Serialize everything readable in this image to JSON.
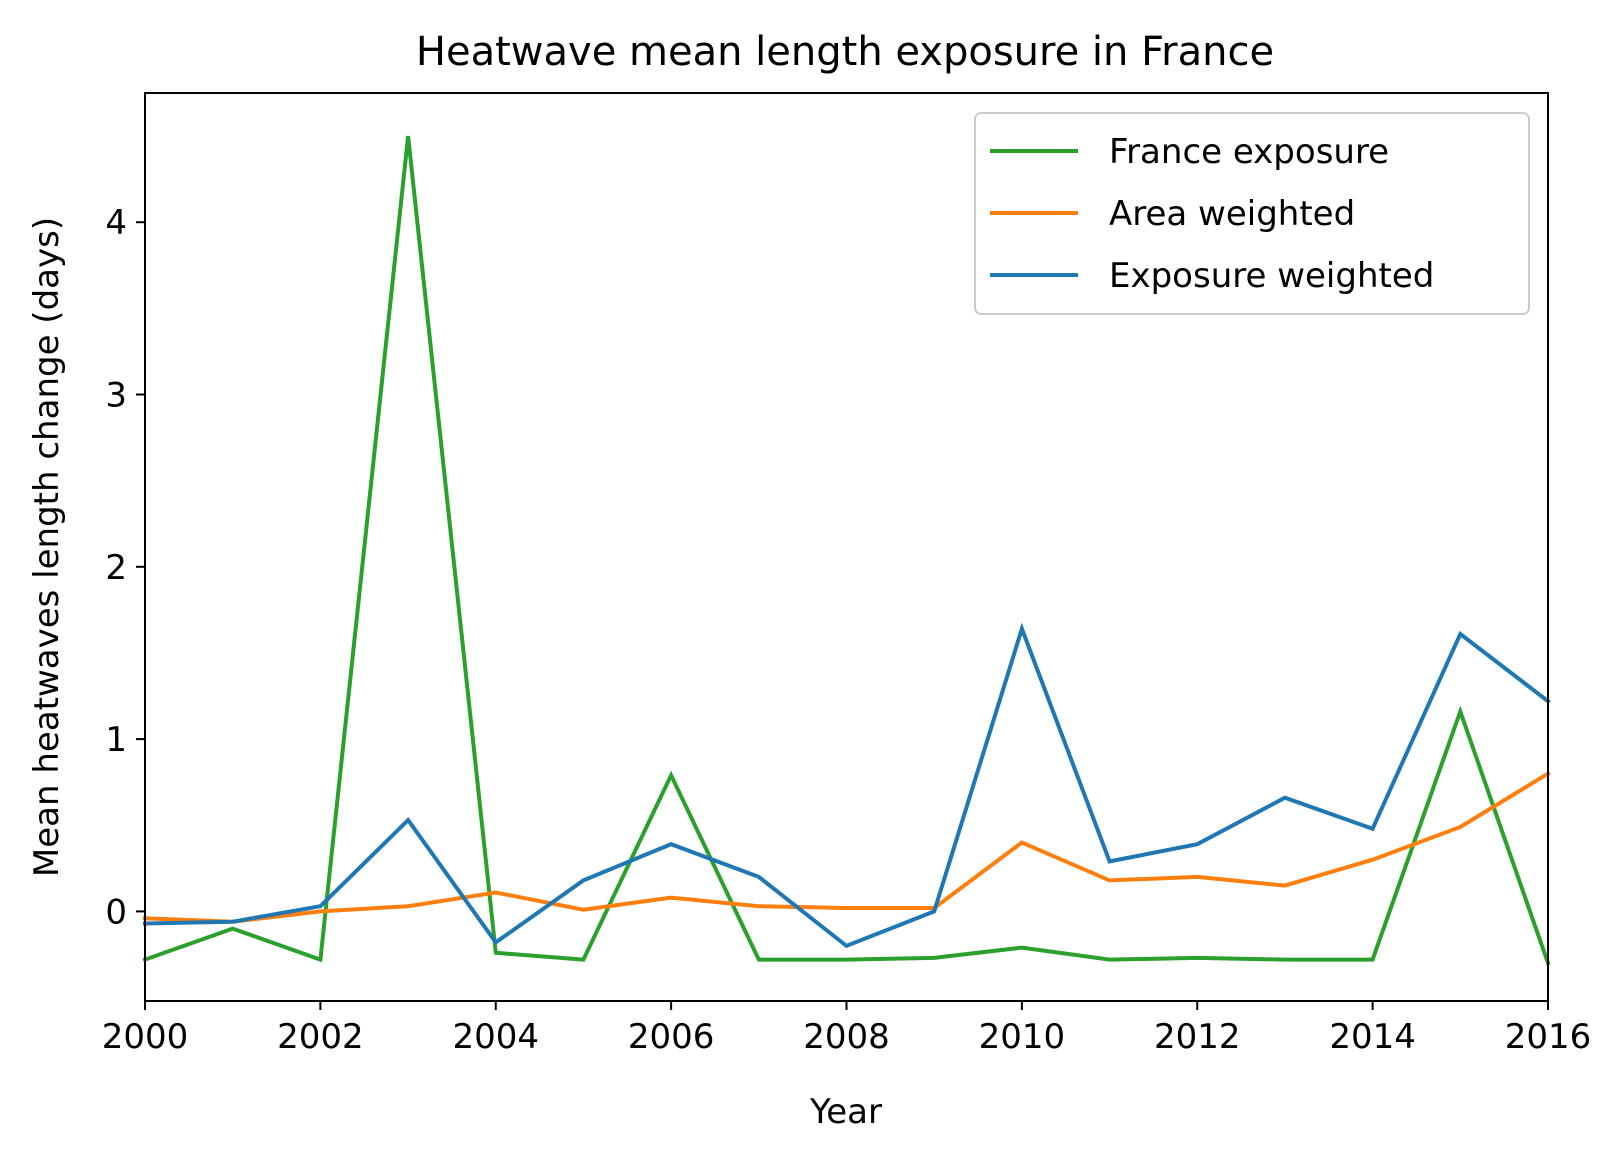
{
  "chart_data": {
    "type": "line",
    "title": "Heatwave mean length exposure in France",
    "xlabel": "Year",
    "ylabel": "Mean heatwaves length change (days)",
    "xlim": [
      2000,
      2016
    ],
    "ylim": [
      -0.52,
      4.75
    ],
    "xticks": [
      "2000",
      "2002",
      "2004",
      "2006",
      "2008",
      "2010",
      "2012",
      "2014",
      "2016"
    ],
    "yticks": [
      "0",
      "1",
      "2",
      "3",
      "4"
    ],
    "x": [
      2000,
      2001,
      2002,
      2003,
      2004,
      2005,
      2006,
      2007,
      2008,
      2009,
      2010,
      2011,
      2012,
      2013,
      2014,
      2015,
      2016
    ],
    "grid": false,
    "legend_position": "top-right",
    "series": [
      {
        "name": "France exposure",
        "color": "#2ca02c",
        "values": [
          -0.28,
          -0.1,
          -0.28,
          4.5,
          -0.24,
          -0.28,
          0.79,
          -0.28,
          -0.28,
          -0.27,
          -0.21,
          -0.28,
          -0.27,
          -0.28,
          -0.28,
          1.16,
          -0.3
        ]
      },
      {
        "name": "Area weighted",
        "color": "#ff7f0e",
        "values": [
          -0.04,
          -0.06,
          0.0,
          0.03,
          0.11,
          0.01,
          0.08,
          0.03,
          0.02,
          0.02,
          0.4,
          0.18,
          0.2,
          0.15,
          0.3,
          0.49,
          0.8
        ]
      },
      {
        "name": "Exposure weighted",
        "color": "#1f77b4",
        "values": [
          -0.07,
          -0.06,
          0.03,
          0.53,
          -0.18,
          0.18,
          0.39,
          0.2,
          -0.2,
          0.0,
          1.64,
          0.29,
          0.39,
          0.66,
          0.48,
          1.61,
          1.22
        ]
      }
    ]
  }
}
